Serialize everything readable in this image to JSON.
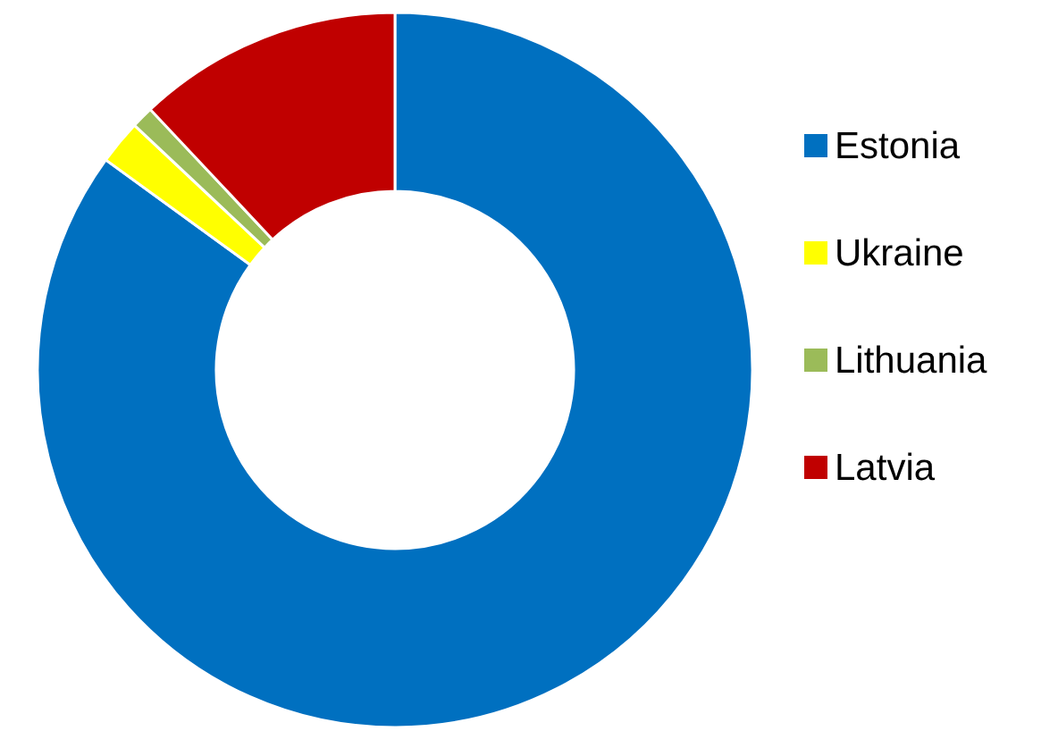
{
  "chart_data": {
    "type": "donut",
    "categories": [
      "Estonia",
      "Ukraine",
      "Lithuania",
      "Latvia"
    ],
    "values": [
      85,
      2,
      1,
      12
    ],
    "colors": [
      "#0070c0",
      "#ffff00",
      "#9bbb59",
      "#c00000"
    ],
    "legend": "right"
  }
}
